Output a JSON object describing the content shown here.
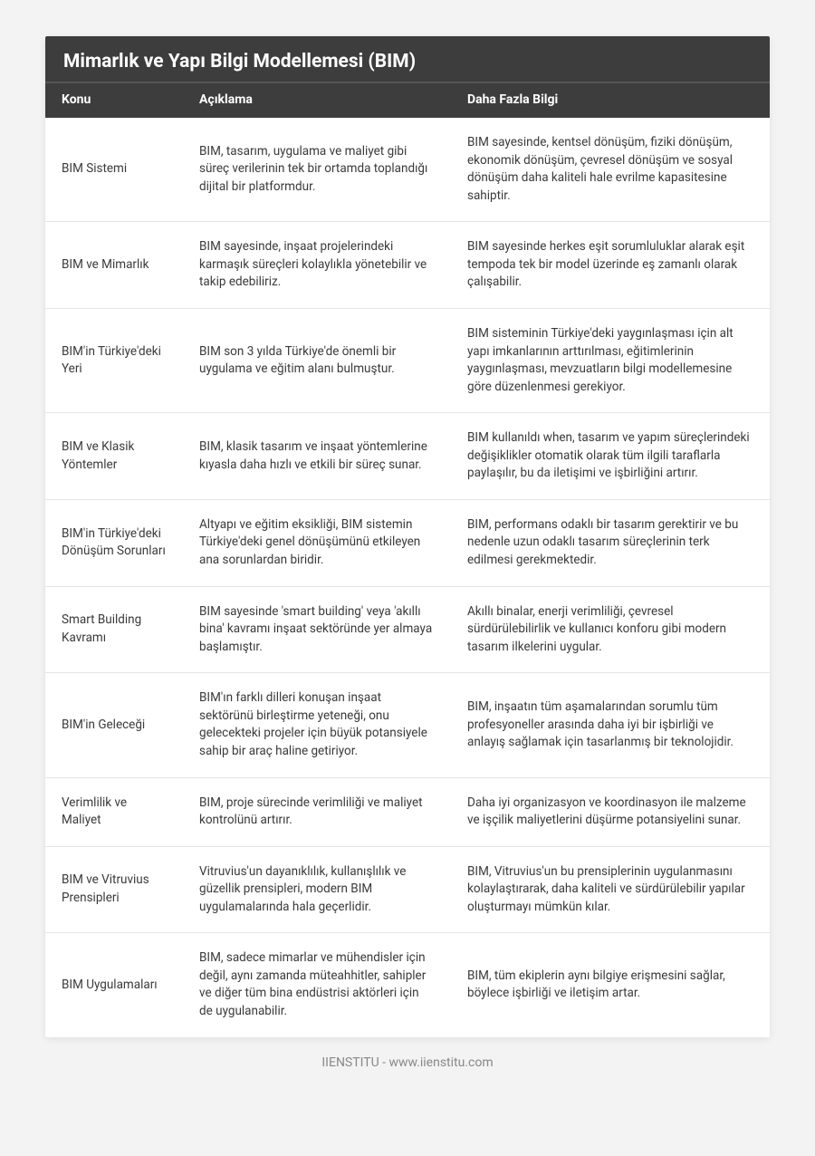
{
  "title": "Mimarlık ve Yapı Bilgi Modellemesi (BIM)",
  "columns": [
    "Konu",
    "Açıklama",
    "Daha Fazla Bilgi"
  ],
  "rows": [
    {
      "topic": "BIM Sistemi",
      "desc": "BIM, tasarım, uygulama ve maliyet gibi süreç verilerinin tek bir ortamda toplandığı dijital bir platformdur.",
      "more": "BIM sayesinde, kentsel dönüşüm, fiziki dönüşüm, ekonomik dönüşüm, çevresel dönüşüm ve sosyal dönüşüm daha kaliteli hale evrilme kapasitesine sahiptir."
    },
    {
      "topic": "BIM ve Mimarlık",
      "desc": "BIM sayesinde, inşaat projelerindeki karmaşık süreçleri kolaylıkla yönetebilir ve takip edebiliriz.",
      "more": "BIM sayesinde herkes eşit sorumluluklar alarak eşit tempoda tek bir model üzerinde eş zamanlı olarak çalışabilir."
    },
    {
      "topic": "BIM'in Türkiye'deki Yeri",
      "desc": "BIM son 3 yılda Türkiye'de önemli bir uygulama ve eğitim alanı bulmuştur.",
      "more": "BIM sisteminin Türkiye'deki yaygınlaşması için alt yapı imkanlarının arttırılması, eğitimlerinin yaygınlaşması, mevzuatların bilgi modellemesine göre düzenlenmesi gerekiyor."
    },
    {
      "topic": "BIM ve Klasik Yöntemler",
      "desc": "BIM, klasik tasarım ve inşaat yöntemlerine kıyasla daha hızlı ve etkili bir süreç sunar.",
      "more": "BIM kullanıldı when, tasarım ve yapım süreçlerindeki değişiklikler otomatik olarak tüm ilgili taraflarla paylaşılır, bu da iletişimi ve işbirliğini artırır."
    },
    {
      "topic": "BIM'in Türkiye'deki Dönüşüm Sorunları",
      "desc": "Altyapı ve eğitim eksikliği, BIM sistemin Türkiye'deki genel dönüşümünü etkileyen ana sorunlardan biridir.",
      "more": "BIM, performans odaklı bir tasarım gerektirir ve bu nedenle uzun odaklı tasarım süreçlerinin terk edilmesi gerekmektedir."
    },
    {
      "topic": "Smart Building Kavramı",
      "desc": "BIM sayesinde 'smart building' veya 'akıllı bina' kavramı inşaat sektöründe yer almaya başlamıştır.",
      "more": "Akıllı binalar, enerji verimliliği, çevresel sürdürülebilirlik ve kullanıcı konforu gibi modern tasarım ilkelerini uygular."
    },
    {
      "topic": "BIM'in Geleceği",
      "desc": "BIM'ın farklı dilleri konuşan inşaat sektörünü birleştirme yeteneği, onu gelecekteki projeler için büyük potansiyele sahip bir araç haline getiriyor.",
      "more": "BIM, inşaatın tüm aşamalarından sorumlu tüm profesyoneller arasında daha iyi bir işbirliği ve anlayış sağlamak için tasarlanmış bir teknolojidir."
    },
    {
      "topic": "Verimlilik ve Maliyet",
      "desc": "BIM, proje sürecinde verimliliği ve maliyet kontrolünü artırır.",
      "more": "Daha iyi organizasyon ve koordinasyon ile malzeme ve işçilik maliyetlerini düşürme potansiyelini sunar."
    },
    {
      "topic": "BIM ve Vitruvius Prensipleri",
      "desc": "Vitruvius'un dayanıklılık, kullanışlılık ve güzellik prensipleri, modern BIM uygulamalarında hala geçerlidir.",
      "more": "BIM, Vitruvius'un bu prensiplerinin uygulanmasını kolaylaştırarak, daha kaliteli ve sürdürülebilir yapılar oluşturmayı mümkün kılar."
    },
    {
      "topic": "BIM Uygulamaları",
      "desc": "BIM, sadece mimarlar ve mühendisler için değil, aynı zamanda müteahhitler, sahipler ve diğer tüm bina endüstrisi aktörleri için de uygulanabilir.",
      "more": "BIM, tüm ekiplerin aynı bilgiye erişmesini sağlar, böylece işbirliği ve iletişim artar."
    }
  ],
  "footer": "IIENSTITU - www.iienstitu.com"
}
